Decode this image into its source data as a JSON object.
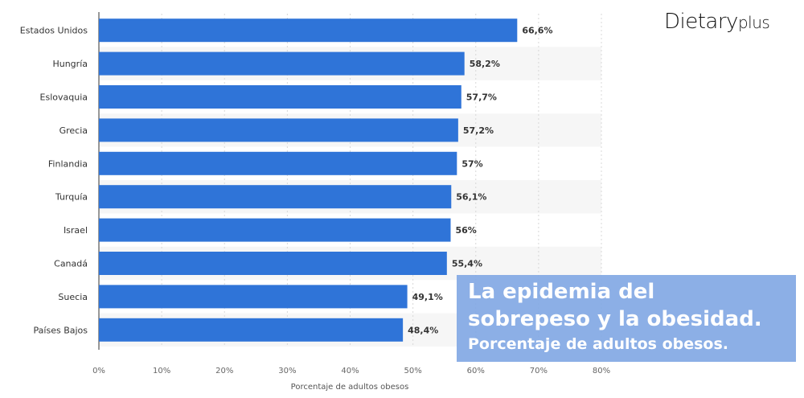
{
  "logo": {
    "text_main": "Dietary",
    "text_suffix": "plus"
  },
  "overlay": {
    "title_line1": "La epidemia del",
    "title_line2": "sobrepeso y la obesidad.",
    "subtitle": "Porcentaje de adultos obesos."
  },
  "chart_data": {
    "type": "bar",
    "orientation": "horizontal",
    "categories": [
      "Estados Unidos",
      "Hungría",
      "Eslovaquia",
      "Grecia",
      "Finlandia",
      "Turquía",
      "Israel",
      "Canadá",
      "Suecia",
      "Países Bajos"
    ],
    "values": [
      66.6,
      58.2,
      57.7,
      57.2,
      57,
      56.1,
      56,
      55.4,
      49.1,
      48.4
    ],
    "data_labels": [
      "66,6%",
      "58,2%",
      "57,7%",
      "57,2%",
      "57%",
      "56,1%",
      "56%",
      "55,4%",
      "49,1%",
      "48,4%"
    ],
    "xlabel": "Porcentaje de adultos obesos",
    "ylabel": "",
    "xlim": [
      0,
      80
    ],
    "x_ticks": [
      "0%",
      "10%",
      "20%",
      "30%",
      "40%",
      "50%",
      "60%",
      "70%",
      "80%"
    ],
    "grid": true,
    "bar_color": "#2f74d8",
    "stripe_color": "#f6f6f6"
  }
}
